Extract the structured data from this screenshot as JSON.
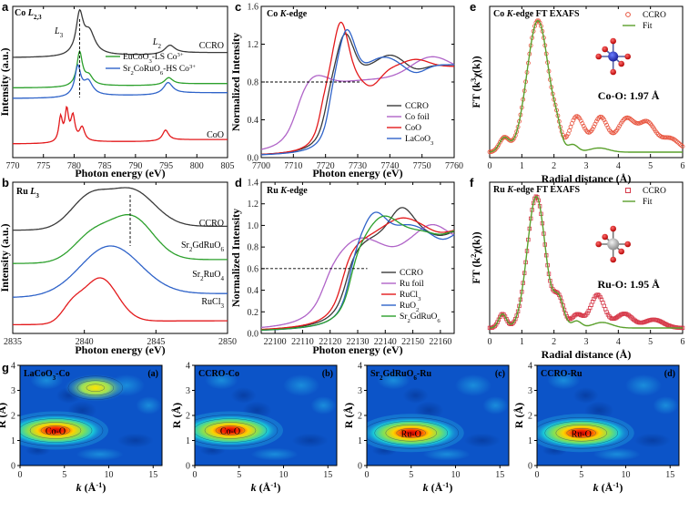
{
  "figure": {
    "panel_labels": [
      "a",
      "b",
      "c",
      "d",
      "e",
      "f",
      "g"
    ]
  },
  "chart_data": [
    {
      "id": "a",
      "type": "line",
      "title": "Co L2,3",
      "xlabel": "Photon energy (eV)",
      "ylabel": "Intensity (a.u.)",
      "xlim": [
        770,
        805
      ],
      "xticks": [
        770,
        775,
        780,
        785,
        790,
        795,
        800,
        805
      ],
      "peak_labels": [
        {
          "text": "L3",
          "x": 777.5
        },
        {
          "text": "L2",
          "x": 793.5
        }
      ],
      "reference_line_x": 780.9,
      "legend": [
        "EuCoO3-LS Co3+",
        "Sr2CoRuO6-HS Co3+"
      ],
      "series": [
        {
          "name": "CCRO",
          "color": "#3a3a3a",
          "label_end": "CCRO"
        },
        {
          "name": "EuCoO3-LS Co3+",
          "color": "#2ca02c"
        },
        {
          "name": "Sr2CoRuO6-HS Co3+",
          "color": "#2f63c9"
        },
        {
          "name": "CoO",
          "color": "#e31a1c",
          "label_end": "CoO"
        }
      ]
    },
    {
      "id": "b",
      "type": "line",
      "title": "Ru L3",
      "xlabel": "Photon energy (eV)",
      "ylabel": "Intensity (a.u.)",
      "xlim": [
        2835,
        2850
      ],
      "xticks": [
        2835,
        2840,
        2845,
        2850
      ],
      "reference_line_x": 2843.2,
      "series": [
        {
          "name": "CCRO",
          "color": "#3a3a3a",
          "label_end": "CCRO"
        },
        {
          "name": "Sr2GdRuO6",
          "color": "#2ca02c",
          "label_end": "Sr2GdRuO6"
        },
        {
          "name": "Sr2RuO4",
          "color": "#2f63c9",
          "label_end": "Sr2RuO4"
        },
        {
          "name": "RuCl3",
          "color": "#e31a1c",
          "label_end": "RuCl3"
        }
      ]
    },
    {
      "id": "c",
      "type": "line",
      "title": "Co K-edge",
      "xlabel": "Photon energy (eV)",
      "ylabel": "Normalized Intensity",
      "xlim": [
        7700,
        7760
      ],
      "ylim": [
        0,
        1.6
      ],
      "xticks": [
        7700,
        7710,
        7720,
        7730,
        7740,
        7750,
        7760
      ],
      "yticks": [
        0.0,
        0.4,
        0.8,
        1.2,
        1.6
      ],
      "reference_line_y": 0.8,
      "series": [
        {
          "name": "CCRO",
          "color": "#3a3a3a"
        },
        {
          "name": "Co foil",
          "color": "#b064c8"
        },
        {
          "name": "CoO",
          "color": "#e31a1c"
        },
        {
          "name": "LaCoO3",
          "color": "#2f63c9"
        }
      ]
    },
    {
      "id": "d",
      "type": "line",
      "title": "Ru K-edge",
      "xlabel": "Photon energy (eV)",
      "ylabel": "Normalized Intensity",
      "xlim": [
        22095,
        22165
      ],
      "ylim": [
        0,
        1.4
      ],
      "xticks": [
        22100,
        22110,
        22120,
        22130,
        22140,
        22150,
        22160
      ],
      "yticks": [
        0.0,
        0.2,
        0.4,
        0.6,
        0.8,
        1.0,
        1.2,
        1.4
      ],
      "reference_line_y": 0.6,
      "series": [
        {
          "name": "CCRO",
          "color": "#3a3a3a"
        },
        {
          "name": "Ru foil",
          "color": "#b064c8"
        },
        {
          "name": "RuCl3",
          "color": "#e31a1c"
        },
        {
          "name": "RuO2",
          "color": "#2f63c9"
        },
        {
          "name": "Sr2GdRuO6",
          "color": "#2ca02c"
        }
      ]
    },
    {
      "id": "e",
      "type": "line",
      "title": "Co K-edge FT EXAFS",
      "xlabel": "Radial distance (Å)",
      "ylabel": "FT (k3χ(k))",
      "xlim": [
        0,
        6
      ],
      "xticks": [
        0,
        1,
        2,
        3,
        4,
        5,
        6
      ],
      "annotation": "Co-O: 1.97 Å",
      "peak_R": 1.5,
      "series": [
        {
          "name": "CCRO",
          "color": "#e8553f",
          "style": "circle-markers"
        },
        {
          "name": "Fit",
          "color": "#5aa02c",
          "style": "line"
        }
      ]
    },
    {
      "id": "f",
      "type": "line",
      "title": "Ru K-edge FT EXAFS",
      "xlabel": "Radial distance (Å)",
      "ylabel": "FT (k2χ(k))",
      "xlim": [
        0,
        6
      ],
      "xticks": [
        0,
        1,
        2,
        3,
        4,
        5,
        6
      ],
      "annotation": "Ru-O: 1.95 Å",
      "peak_R": 1.45,
      "series": [
        {
          "name": "CCRO",
          "color": "#d63a4a",
          "style": "square-markers"
        },
        {
          "name": "Fit",
          "color": "#5aa02c",
          "style": "line"
        }
      ]
    },
    {
      "id": "g",
      "type": "heatmap",
      "xlabel": "k (Å-1)",
      "ylabel": "R (Å)",
      "xlim": [
        0,
        16
      ],
      "ylim": [
        0,
        4
      ],
      "xticks": [
        0,
        5,
        10,
        15
      ],
      "yticks": [
        0,
        1,
        2,
        3,
        4
      ],
      "panels": [
        {
          "sub": "(a)",
          "title": "LaCoO3-Co",
          "peak_label": "Co-O",
          "peak": {
            "k": 4,
            "R": 1.4
          },
          "secondary": {
            "k": 8.5,
            "R": 3.1
          }
        },
        {
          "sub": "(b)",
          "title": "CCRO-Co",
          "peak_label": "Co-O",
          "peak": {
            "k": 4,
            "R": 1.4
          }
        },
        {
          "sub": "(c)",
          "title": "Sr2GdRuO6-Ru",
          "peak_label": "Ru-O",
          "peak": {
            "k": 5,
            "R": 1.3
          }
        },
        {
          "sub": "(d)",
          "title": "CCRO-Ru",
          "peak_label": "Ru-O",
          "peak": {
            "k": 5,
            "R": 1.3
          }
        }
      ]
    }
  ],
  "colors": {
    "black": "#3a3a3a",
    "green": "#2ca02c",
    "blue": "#2f63c9",
    "red": "#e31a1c",
    "purple": "#b064c8",
    "fit_green": "#5aa02c"
  }
}
